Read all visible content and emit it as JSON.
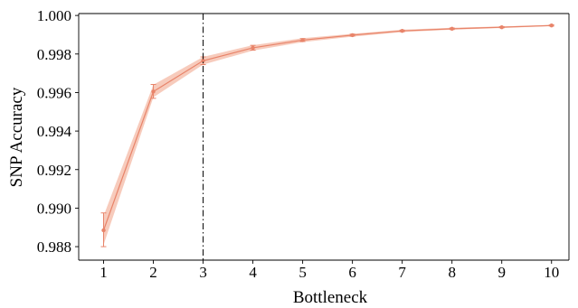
{
  "chart_data": {
    "type": "line",
    "title": "",
    "xlabel": "Bottleneck",
    "ylabel": "SNP Accuracy",
    "x": [
      1,
      2,
      3,
      4,
      5,
      6,
      7,
      8,
      9,
      10
    ],
    "xlim": [
      0.5,
      10.35
    ],
    "ylim": [
      0.9873,
      1.0001
    ],
    "xticks": [
      "1",
      "2",
      "3",
      "4",
      "5",
      "6",
      "7",
      "8",
      "9",
      "10"
    ],
    "yticks": [
      "0.988",
      "0.990",
      "0.992",
      "0.994",
      "0.996",
      "0.998",
      "1.000"
    ],
    "grid": false,
    "legend": "none",
    "series": [
      {
        "values": [
          0.98885,
          0.99605,
          0.99765,
          0.99832,
          0.99872,
          0.99898,
          0.9992,
          0.99931,
          0.99939,
          0.99948
        ],
        "error_lower": [
          0.988,
          0.9957,
          0.99745,
          0.9982,
          0.99865,
          0.99893,
          0.99916,
          0.99927,
          0.99936,
          0.99945
        ],
        "error_upper": [
          0.98975,
          0.99642,
          0.99785,
          0.99845,
          0.9988,
          0.99903,
          0.99924,
          0.99935,
          0.99942,
          0.99951
        ],
        "band_lower": [
          0.9881,
          0.99575,
          0.99745,
          0.99818,
          0.99862,
          0.9989,
          0.99914,
          0.99926,
          0.99935,
          0.99945
        ],
        "band_upper": [
          0.9896,
          0.9964,
          0.99785,
          0.99846,
          0.99882,
          0.99905,
          0.99926,
          0.99936,
          0.99943,
          0.99951
        ],
        "color": "#e8846a",
        "band_color": "#f6c2b0"
      }
    ],
    "vline": {
      "x": 3,
      "style": "dashdot",
      "color": "#000000"
    }
  }
}
